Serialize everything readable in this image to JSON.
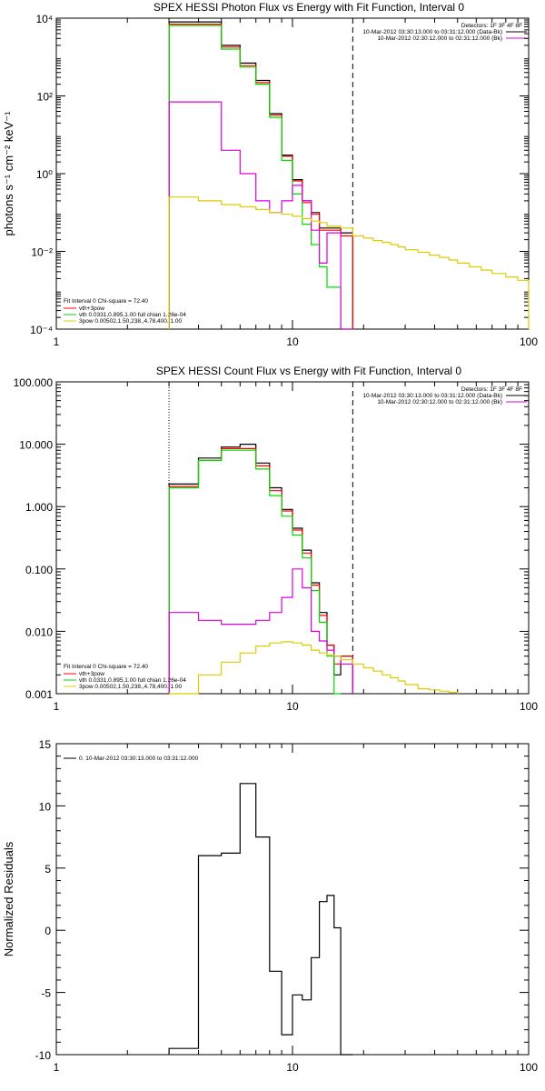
{
  "colors": {
    "black": "#000000",
    "red": "#ff0000",
    "green": "#00dd00",
    "magenta": "#dd00dd",
    "yellow": "#ddcc00"
  },
  "chart_data": [
    {
      "type": "line",
      "title": "SPEX HESSI Photon Flux vs Energy with Fit Function, Interval 0",
      "xlabel": "",
      "ylabel": "photons s⁻¹ cm⁻² keV⁻¹",
      "xscale": "log",
      "yscale": "log",
      "xlim": [
        1,
        100
      ],
      "ylim": [
        0.0001,
        10000
      ],
      "x_ticks": [
        "1",
        "10",
        "100"
      ],
      "y_ticks": [
        "10⁴",
        "10²",
        "10⁰",
        "10⁻²",
        "10⁻⁴"
      ],
      "legend_topright": [
        "Detectors: 1F 3F 4F 8F",
        "10-Mar-2012 03:30:13.000 to 03:31:12.000 (Data-Bk)",
        "10-Mar-2012 02:30:12.000 to 02:31:12.000 (Bk)"
      ],
      "legend_bottomleft": [
        "Fit Interval 0   Chi-square = 72.40",
        "vth+3pow",
        "vth 0.0331,0.895,1.00  full chian 1.26e-04",
        "3pow 0.00502,1.50,238.,4.78,400.,1.00"
      ],
      "vlines": [
        3.0,
        18.0
      ],
      "series": [
        {
          "name": "10-Mar-2012 03:30:13.000 to 03:31:12.000 (Data-Bk)",
          "color": "black",
          "edges": [
            3,
            4,
            5,
            6,
            7,
            8,
            9,
            10,
            11,
            12,
            13,
            14,
            16,
            18
          ],
          "values": [
            8000,
            8000,
            2000,
            700,
            250,
            35,
            3,
            0.7,
            0.2,
            0.1,
            0.04,
            0.04,
            0.03
          ]
        },
        {
          "name": "vth+3pow",
          "color": "red",
          "edges": [
            3,
            4,
            5,
            6,
            7,
            8,
            9,
            10,
            11,
            12,
            13,
            14,
            16,
            18
          ],
          "values": [
            7000,
            7000,
            1800,
            600,
            220,
            32,
            2.8,
            0.65,
            0.18,
            0.09,
            0.035,
            0.035,
            0.025
          ]
        },
        {
          "name": "vth",
          "color": "green",
          "edges": [
            3,
            4,
            5,
            6,
            7,
            8,
            9,
            10,
            11,
            12,
            13,
            14,
            16,
            18
          ],
          "values": [
            6500,
            6500,
            1600,
            550,
            200,
            28,
            2.2,
            0.3,
            0.05,
            0.015,
            0.004,
            0.0012,
            0.0001
          ]
        },
        {
          "name": "10-Mar-2012 02:30:12.000 to 02:31:12.000 (Bk)",
          "color": "magenta",
          "edges": [
            3,
            4,
            5,
            6,
            7,
            8,
            9,
            10,
            11,
            12,
            13,
            14,
            16,
            18
          ],
          "values": [
            70,
            70,
            4,
            1,
            0.2,
            0.1,
            0.2,
            0.5,
            0.2,
            0.035,
            0.005,
            0.03,
            0.0001
          ]
        },
        {
          "name": "3pow",
          "color": "yellow",
          "edges": [
            3,
            4,
            5,
            6,
            7,
            8,
            9,
            10,
            11,
            12,
            13,
            14,
            16,
            18,
            20,
            22,
            24,
            26,
            28,
            30,
            34,
            38,
            42,
            46,
            50,
            56,
            63,
            70,
            80,
            90,
            100
          ],
          "values": [
            0.25,
            0.2,
            0.16,
            0.14,
            0.12,
            0.1,
            0.09,
            0.08,
            0.07,
            0.06,
            0.055,
            0.045,
            0.04,
            0.025,
            0.022,
            0.019,
            0.017,
            0.015,
            0.013,
            0.011,
            0.0095,
            0.008,
            0.007,
            0.006,
            0.005,
            0.004,
            0.0033,
            0.0027,
            0.0022,
            0.0018
          ]
        }
      ]
    },
    {
      "type": "line",
      "title": "SPEX HESSI Count Flux vs Energy with Fit Function, Interval 0",
      "xlabel": "",
      "ylabel": "",
      "xscale": "log",
      "yscale": "log",
      "xlim": [
        1,
        100
      ],
      "ylim": [
        0.001,
        100
      ],
      "x_ticks": [
        "1",
        "10",
        "100"
      ],
      "y_ticks": [
        "100.000",
        "10.000",
        "1.000",
        "0.100",
        "0.010",
        "0.001"
      ],
      "legend_topright": [
        "Detectors: 1F 3F 4F 8F",
        "10-Mar-2012 03:30:13.000 to 03:31:12.000 (Data-Bk)",
        "10-Mar-2012 02:30:12.000 to 02:31:12.000 (Bk)"
      ],
      "legend_bottomleft": [
        "Fit Interval 0   Chi-square = 72.40",
        "vth+3pow",
        "vth 0.0331,0.895,1.00  full chian 1.26e-04",
        "3pow 0.00502,1.50,238.,4.78,400.,1.00"
      ],
      "vlines": [
        3.0,
        18.0
      ],
      "series": [
        {
          "name": "10-Mar-2012 03:30:13.000 to 03:31:12.000 (Data-Bk)",
          "color": "black",
          "edges": [
            3,
            4,
            5,
            6,
            7,
            8,
            9,
            10,
            11,
            12,
            13,
            14,
            15,
            16,
            18
          ],
          "values": [
            2.3,
            6,
            9,
            10,
            5,
            2,
            0.9,
            0.45,
            0.2,
            0.06,
            0.02,
            0.006,
            0.002,
            0.004
          ]
        },
        {
          "name": "vth+3pow",
          "color": "red",
          "edges": [
            3,
            4,
            5,
            6,
            7,
            8,
            9,
            10,
            11,
            12,
            13,
            14,
            15,
            16,
            18
          ],
          "values": [
            2.1,
            5.5,
            8.5,
            8.5,
            4.5,
            1.8,
            0.85,
            0.42,
            0.18,
            0.055,
            0.018,
            0.006,
            0.003,
            0.004
          ]
        },
        {
          "name": "vth",
          "color": "green",
          "edges": [
            3,
            4,
            5,
            6,
            7,
            8,
            9,
            10,
            11,
            12,
            13,
            14,
            15,
            16
          ],
          "values": [
            2,
            5.5,
            8,
            8,
            4,
            1.5,
            0.7,
            0.35,
            0.15,
            0.045,
            0.014,
            0.004,
            0.001
          ]
        },
        {
          "name": "10-Mar-2012 02:30:12.000 to 02:31:12.000 (Bk)",
          "color": "magenta",
          "edges": [
            3,
            4,
            5,
            6,
            7,
            8,
            9,
            10,
            11,
            12,
            13,
            14,
            15,
            16,
            18
          ],
          "values": [
            0.02,
            0.015,
            0.013,
            0.013,
            0.015,
            0.02,
            0.035,
            0.1,
            0.05,
            0.01,
            0.007,
            0.005,
            0.004,
            0.003
          ]
        },
        {
          "name": "3pow",
          "color": "yellow",
          "edges": [
            3,
            4,
            5,
            6,
            7,
            8,
            9,
            10,
            11,
            12,
            13,
            14,
            15,
            16,
            18,
            20,
            22,
            24,
            26,
            28,
            30,
            34,
            38,
            42,
            46,
            50
          ],
          "values": [
            0.001,
            0.002,
            0.0032,
            0.0045,
            0.0058,
            0.0065,
            0.0068,
            0.0065,
            0.006,
            0.005,
            0.0045,
            0.0042,
            0.004,
            0.0035,
            0.003,
            0.0026,
            0.0023,
            0.002,
            0.0018,
            0.0016,
            0.0014,
            0.0012,
            0.00115,
            0.0011,
            0.00105
          ]
        }
      ]
    },
    {
      "type": "line",
      "title": "",
      "xlabel": "",
      "ylabel": "Normalized Residuals",
      "xscale": "log",
      "yscale": "linear",
      "xlim": [
        1,
        100
      ],
      "ylim": [
        -10,
        15
      ],
      "x_ticks": [
        "1",
        "10",
        "100"
      ],
      "y_ticks": [
        "15",
        "10",
        "5",
        "0",
        "-5",
        "-10"
      ],
      "legend": [
        "0. 10-Mar-2012 03:30:13.000 to 03:31:12.000"
      ],
      "series": [
        {
          "name": "0. 10-Mar-2012 03:30:13.000 to 03:31:12.000",
          "color": "black",
          "edges": [
            3,
            4,
            5,
            6,
            7,
            8,
            9,
            10,
            11,
            12,
            13,
            14,
            15,
            16,
            18
          ],
          "values": [
            -9.5,
            6,
            6.2,
            11.8,
            7.5,
            -3.3,
            -8.4,
            -5.2,
            -5.6,
            -2.2,
            2.3,
            2.8,
            0.2,
            -10
          ]
        }
      ]
    }
  ]
}
